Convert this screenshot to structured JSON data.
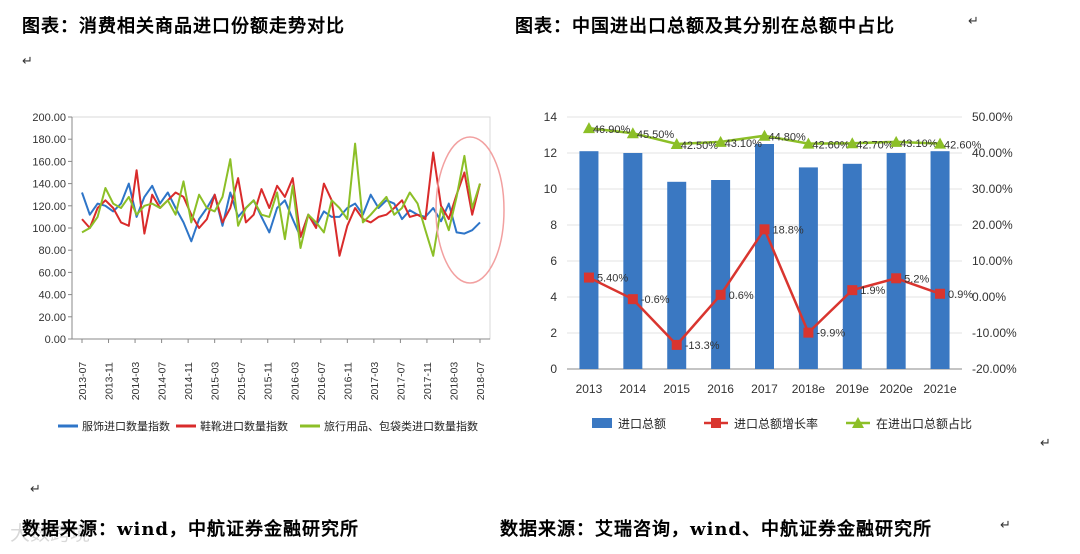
{
  "titles": {
    "left": "图表：消费相关商品进口份额走势对比",
    "right": "图表：中国进出口总额及其分别在总额中占比"
  },
  "sources": {
    "left": "数据来源：wind，中航证券金融研究所",
    "right": "数据来源：艾瑞咨询，wind、中航证券金融研究所"
  },
  "watermark": "大数跨境",
  "return_mark": "↵",
  "chart_data": [
    {
      "type": "line",
      "ylim": [
        0,
        200
      ],
      "yticks": [
        "0.00",
        "20.00",
        "40.00",
        "60.00",
        "80.00",
        "100.00",
        "120.00",
        "140.00",
        "160.00",
        "180.00",
        "200.00"
      ],
      "xticks": [
        "2013-07",
        "2013-11",
        "2014-03",
        "2014-07",
        "2014-11",
        "2015-03",
        "2015-07",
        "2015-11",
        "2016-03",
        "2016-07",
        "2016-11",
        "2017-03",
        "2017-07",
        "2017-11",
        "2018-03",
        "2018-07"
      ],
      "series": [
        {
          "name": "服饰进口数量指数",
          "color": "#2e75c8",
          "values": [
            132,
            112,
            122,
            120,
            115,
            122,
            140,
            110,
            128,
            138,
            122,
            132,
            118,
            105,
            88,
            108,
            118,
            130,
            102,
            132,
            110,
            118,
            125,
            110,
            96,
            118,
            125,
            108,
            92,
            112,
            102,
            115,
            110,
            110,
            118,
            122,
            112,
            130,
            118,
            125,
            122,
            108,
            116,
            112,
            110,
            118,
            106,
            122,
            96,
            95,
            98,
            105
          ]
        },
        {
          "name": "鞋靴进口数量指数",
          "color": "#d92b2b",
          "values": [
            108,
            100,
            118,
            125,
            118,
            105,
            102,
            152,
            95,
            130,
            118,
            125,
            132,
            128,
            112,
            100,
            108,
            130,
            105,
            118,
            145,
            105,
            112,
            135,
            118,
            138,
            128,
            145,
            92,
            112,
            100,
            140,
            125,
            75,
            102,
            118,
            108,
            105,
            110,
            112,
            118,
            125,
            110,
            112,
            108,
            168,
            120,
            108,
            130,
            150,
            112,
            140
          ]
        },
        {
          "name": "旅行用品、包袋类进口数量指数",
          "color": "#8cbf27",
          "values": [
            96,
            100,
            110,
            136,
            122,
            118,
            128,
            112,
            120,
            122,
            118,
            125,
            112,
            142,
            105,
            130,
            118,
            115,
            128,
            162,
            102,
            118,
            125,
            112,
            110,
            132,
            90,
            138,
            82,
            112,
            105,
            96,
            125,
            118,
            108,
            176,
            105,
            112,
            120,
            128,
            112,
            118,
            132,
            122,
            98,
            75,
            118,
            98,
            128,
            165,
            118,
            140
          ]
        }
      ]
    },
    {
      "type": "bar",
      "categories": [
        "2013",
        "2014",
        "2015",
        "2016",
        "2017",
        "2018e",
        "2019e",
        "2020e",
        "2021e"
      ],
      "ylim": [
        0,
        14
      ],
      "y2lim": [
        -0.2,
        0.5
      ],
      "yticks": [
        "0",
        "2",
        "4",
        "6",
        "8",
        "10",
        "12",
        "14"
      ],
      "y2ticks": [
        "-20.00%",
        "-10.00%",
        "0.00%",
        "10.00%",
        "20.00%",
        "30.00%",
        "40.00%",
        "50.00%"
      ],
      "series": [
        {
          "name": "进口总额",
          "type": "bar",
          "color": "#3a78c2",
          "values": [
            12.1,
            12.0,
            10.4,
            10.5,
            12.5,
            11.2,
            11.4,
            12.0,
            12.1
          ]
        },
        {
          "name": "进口总额增长率",
          "type": "line",
          "axis": "right",
          "color": "#d9352f",
          "values": [
            0.054,
            -0.006,
            -0.133,
            0.006,
            0.188,
            -0.099,
            0.019,
            0.052,
            0.009
          ],
          "labels": [
            "5.40%",
            "-0.6%",
            "-13.3%",
            "0.6%",
            "18.8%",
            "-9.9%",
            "1.9%",
            "5.2%",
            "0.9%"
          ]
        },
        {
          "name": "在进出口总额占比",
          "type": "line",
          "axis": "right",
          "color": "#8cbf27",
          "values": [
            0.469,
            0.455,
            0.425,
            0.431,
            0.448,
            0.426,
            0.427,
            0.431,
            0.426
          ],
          "labels": [
            "46.90%",
            "45.50%",
            "42.50%",
            "43.10%",
            "44.80%",
            "42.60%",
            "42.70%",
            "43.10%",
            "42.60%"
          ]
        }
      ]
    }
  ]
}
